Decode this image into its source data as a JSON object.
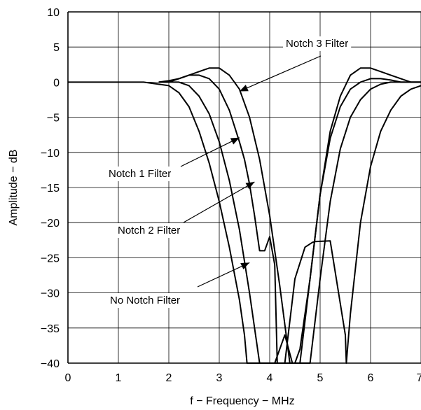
{
  "chart_data": {
    "type": "line",
    "title": "",
    "xlabel": "f − Frequency − MHz",
    "ylabel": "Amplitude − dB",
    "xlim": [
      0,
      7
    ],
    "ylim": [
      -40,
      10
    ],
    "x_ticks": [
      "0",
      "1",
      "2",
      "3",
      "4",
      "5",
      "6",
      "7"
    ],
    "y_ticks": [
      "10",
      "5",
      "0",
      "−5",
      "−10",
      "−15",
      "−20",
      "−25",
      "−30",
      "−35",
      "−40"
    ],
    "grid": true,
    "legend": "none",
    "line_color": "#000000",
    "series": [
      {
        "x": [
          0,
          1.5,
          2.0,
          2.2,
          2.4,
          2.6,
          2.8,
          3.0,
          3.2,
          3.4,
          3.5,
          3.55,
          4.3,
          4.5,
          4.7,
          4.85,
          4.9,
          5.2,
          5.5,
          5.52,
          5.6,
          5.8,
          6.0,
          6.2,
          6.4,
          6.6,
          6.8,
          7.0
        ],
        "y": [
          0,
          0,
          -0.5,
          -1.5,
          -3.5,
          -7,
          -11.5,
          -17,
          -23.5,
          -31,
          -36,
          -40,
          -40,
          -28,
          -23.5,
          -22.8,
          -22.7,
          -22.6,
          -36,
          -40,
          -33,
          -20,
          -12,
          -7,
          -4,
          -2,
          -1,
          -0.5
        ]
      },
      {
        "x": [
          1.8,
          2.0,
          2.2,
          2.4,
          2.6,
          2.8,
          3.0,
          3.2,
          3.4,
          3.6,
          3.8,
          3.85,
          4.0,
          4.1,
          4.3,
          4.45,
          4.8,
          5.0,
          5.2,
          5.4,
          5.6,
          5.8,
          6.0,
          6.2,
          6.4,
          6.6,
          6.8,
          7.0
        ],
        "y": [
          0,
          0,
          0,
          -0.5,
          -2,
          -4.5,
          -8.5,
          -14,
          -21,
          -30,
          -40,
          -40,
          -40,
          -40,
          -36,
          -40,
          -40,
          -28,
          -17,
          -9.5,
          -5,
          -2.5,
          -1,
          -0.3,
          0,
          0,
          0,
          0
        ]
      },
      {
        "x": [
          1.8,
          2.0,
          2.2,
          2.4,
          2.6,
          2.8,
          3.0,
          3.2,
          3.4,
          3.5,
          3.6,
          3.7,
          3.8,
          3.9,
          4.0,
          4.1,
          4.15,
          4.6,
          4.8,
          5.0,
          5.2,
          5.4,
          5.6,
          5.8,
          6.0,
          6.2,
          6.4,
          6.6,
          6.8,
          7.0
        ],
        "y": [
          0,
          0,
          0.5,
          1,
          1,
          0.5,
          -1,
          -4,
          -8.5,
          -11,
          -14.5,
          -19,
          -24,
          -24,
          -22,
          -26,
          -40,
          -40,
          -28,
          -16,
          -8,
          -3.5,
          -1,
          0,
          0.5,
          0.5,
          0.3,
          0,
          0,
          0
        ]
      },
      {
        "x": [
          1.8,
          2.0,
          2.2,
          2.4,
          2.6,
          2.8,
          3.0,
          3.2,
          3.4,
          3.6,
          3.8,
          4.0,
          4.2,
          4.4,
          4.5,
          4.6,
          4.8,
          5.0,
          5.2,
          5.4,
          5.6,
          5.8,
          6.0,
          6.2,
          6.4,
          6.6,
          6.8,
          7.0
        ],
        "y": [
          0,
          0.2,
          0.5,
          1,
          1.5,
          2,
          2,
          1,
          -1,
          -5,
          -11,
          -19,
          -29,
          -40,
          -40,
          -38,
          -28,
          -16,
          -7,
          -2,
          1,
          2,
          2,
          1.5,
          1,
          0.5,
          0,
          0
        ]
      }
    ],
    "annotations": [
      {
        "text": "Notch 3 Filter",
        "x": 3.4,
        "y": -1.3
      },
      {
        "text": "Notch 1 Filter",
        "x": 3.4,
        "y": -7.9
      },
      {
        "text": "Notch 2 Filter",
        "x": 3.7,
        "y": -14.2
      },
      {
        "text": "No Notch Filter",
        "x": 3.6,
        "y": -25.7
      }
    ]
  }
}
